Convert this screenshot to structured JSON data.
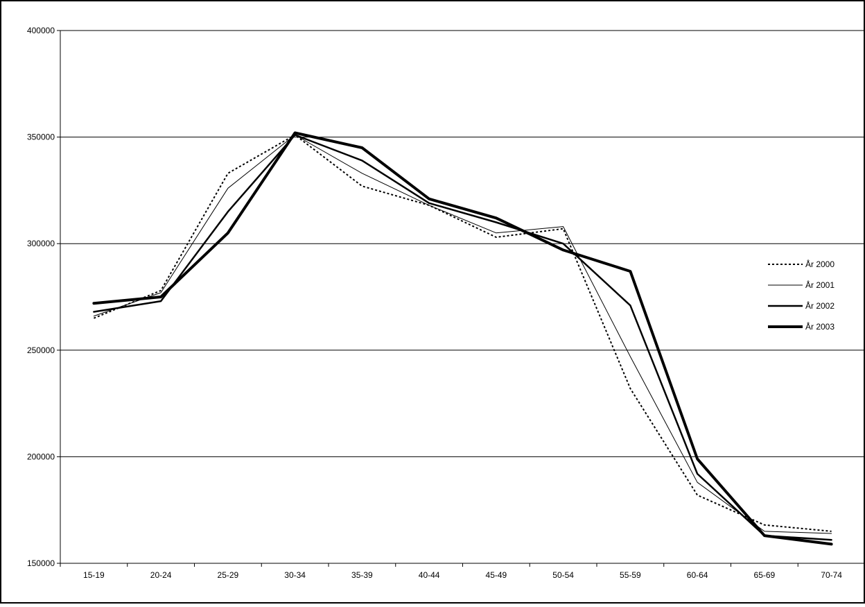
{
  "chart_data": {
    "type": "line",
    "title": "",
    "xlabel": "",
    "ylabel": "",
    "categories": [
      "15-19",
      "20-24",
      "25-29",
      "30-34",
      "35-39",
      "40-44",
      "45-49",
      "50-54",
      "55-59",
      "60-64",
      "65-69",
      "70-74"
    ],
    "ylim": [
      150000,
      400000
    ],
    "yticks": [
      150000,
      200000,
      250000,
      300000,
      350000,
      400000
    ],
    "grid": true,
    "legend_position": "right",
    "series": [
      {
        "name": "År 2000",
        "style": "dotted",
        "values": [
          265000,
          278000,
          333000,
          351000,
          327000,
          318000,
          303000,
          307000,
          232000,
          182000,
          168000,
          165000
        ]
      },
      {
        "name": "År 2001",
        "style": "thin",
        "values": [
          266000,
          277000,
          326000,
          351000,
          333000,
          318000,
          305000,
          308000,
          247000,
          188000,
          165000,
          164000
        ]
      },
      {
        "name": "År 2002",
        "style": "medium",
        "values": [
          268000,
          273000,
          315000,
          351000,
          339000,
          319000,
          310000,
          300000,
          271000,
          192000,
          163000,
          161000
        ]
      },
      {
        "name": "År 2003",
        "style": "thick",
        "values": [
          272000,
          275000,
          305000,
          352000,
          345000,
          321000,
          312000,
          297000,
          287000,
          199000,
          163000,
          159000
        ]
      }
    ]
  }
}
